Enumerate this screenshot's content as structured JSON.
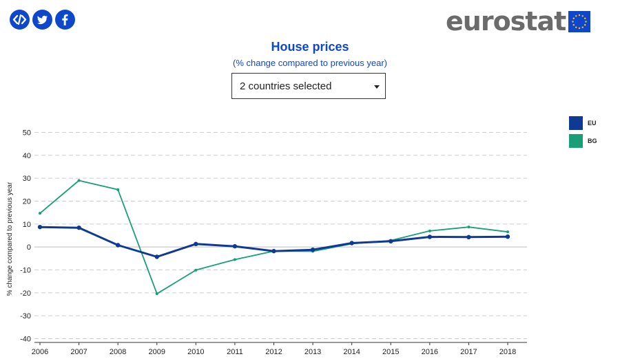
{
  "share": {
    "embed_icon": "code-icon",
    "twitter_icon": "twitter-icon",
    "facebook_icon": "facebook-icon"
  },
  "brand": {
    "wordmark": "eurostat",
    "flag_icon": "eu-flag-icon"
  },
  "colors": {
    "accent": "#0e47cb",
    "eu": "#0e3a94",
    "bg": "#1a9e77",
    "grid": "#cccccc",
    "zero_line": "#bbbbbb"
  },
  "chart_data": {
    "type": "line",
    "title": "House prices",
    "subtitle": "(% change compared to previous year)",
    "ylabel": "% change compared to previous year",
    "xlabel": "",
    "categories": [
      "2006",
      "2007",
      "2008",
      "2009",
      "2010",
      "2011",
      "2012",
      "2013",
      "2014",
      "2015",
      "2016",
      "2017",
      "2018"
    ],
    "yticks": [
      50,
      40,
      30,
      20,
      10,
      0,
      -10,
      -20,
      -30,
      -40
    ],
    "ylim": [
      -40,
      50
    ],
    "grid": true,
    "legend_position": "top-right",
    "series": [
      {
        "name": "EU",
        "color": "#0e3a94",
        "values": [
          8.7,
          8.4,
          0.8,
          -4.3,
          1.3,
          0.3,
          -1.8,
          -1.2,
          1.7,
          2.5,
          4.4,
          4.3,
          4.5
        ]
      },
      {
        "name": "BG",
        "color": "#1a9e77",
        "values": [
          14.7,
          29.0,
          25.0,
          -20.4,
          -10.1,
          -5.5,
          -1.8,
          -1.9,
          1.4,
          2.8,
          7.0,
          8.7,
          6.6
        ]
      }
    ]
  },
  "dropdown": {
    "value": "2 countries selected"
  }
}
